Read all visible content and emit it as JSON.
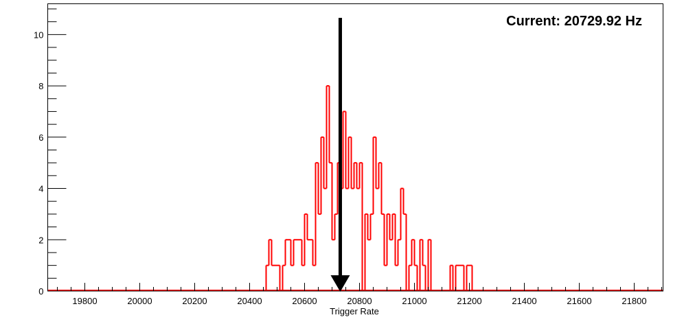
{
  "chart_data": {
    "type": "bar",
    "style": "step-histogram",
    "title": "Current: 20729.92 Hz",
    "xlabel": "Trigger Rate",
    "ylabel": "",
    "xlim": [
      19665,
      21905
    ],
    "ylim": [
      0,
      11.2
    ],
    "x_ticks": [
      19800,
      20000,
      20200,
      20400,
      20600,
      20800,
      21000,
      21200,
      21400,
      21600,
      21800
    ],
    "x_tick_labels": [
      "19800",
      "20000",
      "20200",
      "20400",
      "20600",
      "20800",
      "21000",
      "21200",
      "21400",
      "21600",
      "21800"
    ],
    "y_ticks": [
      0,
      2,
      4,
      6,
      8,
      10
    ],
    "y_tick_labels": [
      "0",
      "2",
      "4",
      "6",
      "8",
      "10"
    ],
    "grid": false,
    "bin_start": 20460,
    "bin_width": 10,
    "values": [
      1,
      2,
      1,
      1,
      1,
      0,
      1,
      2,
      2,
      1,
      2,
      2,
      2,
      1,
      3,
      2,
      2,
      1,
      5,
      3,
      6,
      4,
      8,
      5,
      2,
      3,
      5,
      4,
      7,
      4,
      6,
      4,
      5,
      4,
      5,
      0,
      3,
      2,
      3,
      6,
      4,
      5,
      3,
      1,
      3,
      2,
      3,
      1,
      2,
      4,
      3,
      0,
      1,
      2,
      1,
      0,
      2,
      1,
      0,
      2,
      0,
      0,
      0,
      0,
      0,
      0,
      0,
      1,
      0,
      1,
      1,
      1,
      0,
      1,
      1,
      0
    ],
    "marker_value": 20729.92,
    "line_color": "#ff0000",
    "marker_color": "#000000"
  }
}
